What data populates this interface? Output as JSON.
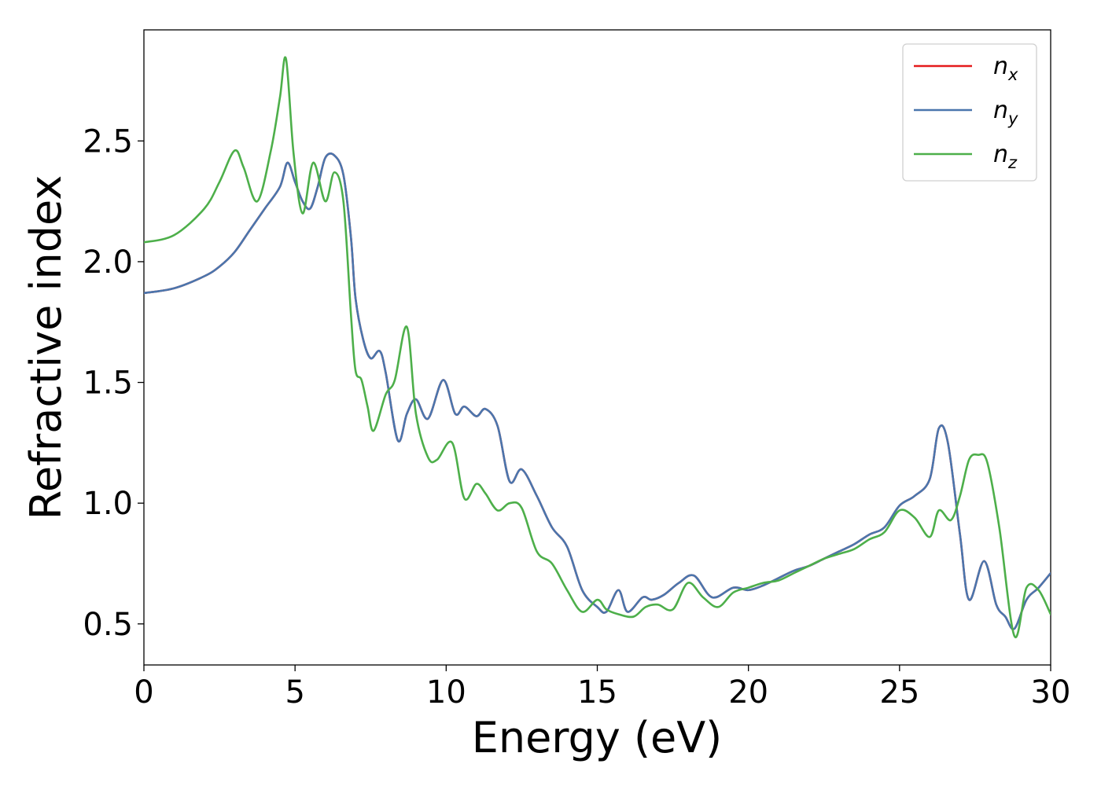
{
  "chart_data": {
    "type": "line",
    "xlabel": "Energy (eV)",
    "ylabel": "Refractive index",
    "xlim": [
      0,
      30
    ],
    "ylim": [
      0.33,
      2.96
    ],
    "x_ticks": [
      0,
      5,
      10,
      15,
      20,
      25,
      30
    ],
    "x_tick_labels": [
      "0",
      "5",
      "10",
      "15",
      "20",
      "25",
      "30"
    ],
    "y_ticks": [
      0.5,
      1.0,
      1.5,
      2.0,
      2.5
    ],
    "y_tick_labels": [
      "0.5",
      "1.0",
      "1.5",
      "2.0",
      "2.5"
    ],
    "grid": false,
    "legend_position": "top-right",
    "series": [
      {
        "name": "n_x",
        "legend_base": "n",
        "legend_sub": "x",
        "color": "#e41a1c",
        "x": [
          0,
          1,
          2,
          2.5,
          3,
          3.5,
          4,
          4.5,
          4.75,
          5,
          5.25,
          5.5,
          5.75,
          6,
          6.3,
          6.6,
          6.85,
          7,
          7.25,
          7.5,
          7.8,
          8,
          8.4,
          8.7,
          9,
          9.4,
          9.9,
          10.3,
          10.6,
          11,
          11.3,
          11.7,
          12.1,
          12.5,
          13,
          13.5,
          14,
          14.5,
          15,
          15.3,
          15.7,
          16,
          16.5,
          16.8,
          17.2,
          17.7,
          18.2,
          18.8,
          19.5,
          20,
          20.5,
          21,
          21.5,
          22,
          22.5,
          23,
          23.5,
          24,
          24.5,
          25,
          25.5,
          26,
          26.3,
          26.6,
          27,
          27.3,
          27.8,
          28.2,
          28.5,
          28.8,
          29.2,
          29.6,
          30
        ],
        "y": [
          1.87,
          1.89,
          1.94,
          1.98,
          2.04,
          2.13,
          2.22,
          2.31,
          2.41,
          2.33,
          2.25,
          2.22,
          2.31,
          2.43,
          2.44,
          2.36,
          2.1,
          1.85,
          1.68,
          1.6,
          1.63,
          1.54,
          1.26,
          1.37,
          1.43,
          1.35,
          1.51,
          1.37,
          1.4,
          1.36,
          1.39,
          1.32,
          1.09,
          1.14,
          1.03,
          0.9,
          0.82,
          0.64,
          0.57,
          0.55,
          0.64,
          0.55,
          0.61,
          0.6,
          0.62,
          0.67,
          0.7,
          0.61,
          0.65,
          0.64,
          0.66,
          0.69,
          0.72,
          0.74,
          0.77,
          0.8,
          0.83,
          0.87,
          0.9,
          0.99,
          1.03,
          1.1,
          1.31,
          1.25,
          0.87,
          0.6,
          0.76,
          0.58,
          0.53,
          0.48,
          0.6,
          0.65,
          0.71
        ]
      },
      {
        "name": "n_y",
        "legend_base": "n",
        "legend_sub": "y",
        "color": "#4a76ad",
        "x": [
          0,
          1,
          2,
          2.5,
          3,
          3.5,
          4,
          4.5,
          4.75,
          5,
          5.25,
          5.5,
          5.75,
          6,
          6.3,
          6.6,
          6.85,
          7,
          7.25,
          7.5,
          7.8,
          8,
          8.4,
          8.7,
          9,
          9.4,
          9.9,
          10.3,
          10.6,
          11,
          11.3,
          11.7,
          12.1,
          12.5,
          13,
          13.5,
          14,
          14.5,
          15,
          15.3,
          15.7,
          16,
          16.5,
          16.8,
          17.2,
          17.7,
          18.2,
          18.8,
          19.5,
          20,
          20.5,
          21,
          21.5,
          22,
          22.5,
          23,
          23.5,
          24,
          24.5,
          25,
          25.5,
          26,
          26.3,
          26.6,
          27,
          27.3,
          27.8,
          28.2,
          28.5,
          28.8,
          29.2,
          29.6,
          30
        ],
        "y": [
          1.87,
          1.89,
          1.94,
          1.98,
          2.04,
          2.13,
          2.22,
          2.31,
          2.41,
          2.33,
          2.25,
          2.22,
          2.31,
          2.43,
          2.44,
          2.36,
          2.1,
          1.85,
          1.68,
          1.6,
          1.63,
          1.54,
          1.26,
          1.37,
          1.43,
          1.35,
          1.51,
          1.37,
          1.4,
          1.36,
          1.39,
          1.32,
          1.09,
          1.14,
          1.03,
          0.9,
          0.82,
          0.64,
          0.57,
          0.55,
          0.64,
          0.55,
          0.61,
          0.6,
          0.62,
          0.67,
          0.7,
          0.61,
          0.65,
          0.64,
          0.66,
          0.69,
          0.72,
          0.74,
          0.77,
          0.8,
          0.83,
          0.87,
          0.9,
          0.99,
          1.03,
          1.1,
          1.31,
          1.25,
          0.87,
          0.6,
          0.76,
          0.58,
          0.53,
          0.48,
          0.6,
          0.65,
          0.71
        ]
      },
      {
        "name": "n_z",
        "legend_base": "n",
        "legend_sub": "z",
        "color": "#4daf4a",
        "x": [
          0,
          1,
          2,
          2.5,
          3,
          3.3,
          3.75,
          4.2,
          4.5,
          4.7,
          4.95,
          5.25,
          5.6,
          6,
          6.3,
          6.6,
          6.85,
          7,
          7.2,
          7.4,
          7.6,
          8,
          8.3,
          8.7,
          9,
          9.4,
          9.7,
          10.2,
          10.6,
          11,
          11.3,
          11.7,
          12.1,
          12.5,
          13,
          13.5,
          14,
          14.5,
          15,
          15.3,
          15.7,
          16.2,
          16.6,
          17,
          17.5,
          18,
          18.5,
          19,
          19.5,
          20,
          20.5,
          21,
          21.5,
          22,
          22.5,
          23,
          23.5,
          24,
          24.5,
          25,
          25.5,
          26,
          26.3,
          26.7,
          27,
          27.3,
          27.6,
          27.9,
          28.3,
          28.8,
          29.2,
          29.6,
          30
        ],
        "y": [
          2.08,
          2.11,
          2.22,
          2.33,
          2.46,
          2.39,
          2.25,
          2.46,
          2.68,
          2.84,
          2.45,
          2.2,
          2.41,
          2.25,
          2.37,
          2.25,
          1.78,
          1.55,
          1.51,
          1.4,
          1.3,
          1.45,
          1.51,
          1.73,
          1.37,
          1.19,
          1.18,
          1.25,
          1.02,
          1.08,
          1.04,
          0.97,
          1.0,
          0.98,
          0.8,
          0.75,
          0.64,
          0.55,
          0.6,
          0.56,
          0.54,
          0.53,
          0.57,
          0.58,
          0.56,
          0.67,
          0.61,
          0.57,
          0.63,
          0.65,
          0.67,
          0.68,
          0.71,
          0.74,
          0.77,
          0.79,
          0.81,
          0.85,
          0.88,
          0.97,
          0.94,
          0.86,
          0.97,
          0.93,
          1.03,
          1.18,
          1.2,
          1.17,
          0.9,
          0.45,
          0.65,
          0.64,
          0.54
        ]
      }
    ]
  }
}
